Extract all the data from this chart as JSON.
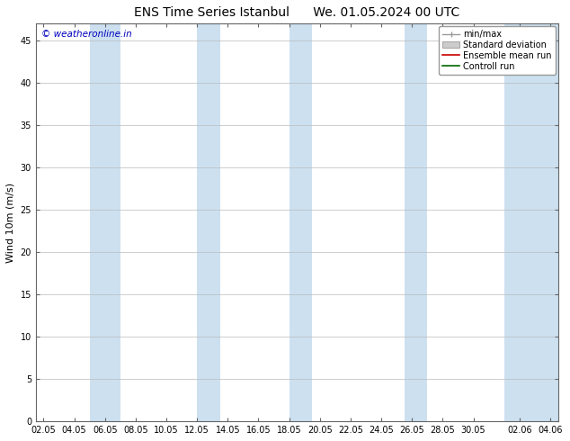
{
  "title_left": "ENS Time Series Istanbul",
  "title_right": "We. 01.05.2024 00 UTC",
  "ylabel": "Wind 10m (m/s)",
  "ylim": [
    0,
    47
  ],
  "yticks": [
    0,
    5,
    10,
    15,
    20,
    25,
    30,
    35,
    40,
    45
  ],
  "bg_color": "#ffffff",
  "plot_bg_color": "#ffffff",
  "watermark": "© weatheronline.in",
  "watermark_color": "#0000bb",
  "blue_band_color": "#cce0f0",
  "xtick_labels": [
    "02.05",
    "04.05",
    "06.05",
    "08.05",
    "10.05",
    "12.05",
    "14.05",
    "16.05",
    "18.05",
    "20.05",
    "22.05",
    "24.05",
    "26.05",
    "28.05",
    "30.05",
    "02.06",
    "04.06"
  ],
  "xtick_positions": [
    0,
    2,
    4,
    6,
    8,
    10,
    12,
    14,
    16,
    18,
    20,
    22,
    24,
    26,
    28,
    31,
    33
  ],
  "blue_bands": [
    [
      3.0,
      5.0
    ],
    [
      10.0,
      11.5
    ],
    [
      16.0,
      17.5
    ],
    [
      23.5,
      25.0
    ],
    [
      30.0,
      33.5
    ]
  ],
  "legend_labels": [
    "min/max",
    "Standard deviation",
    "Ensemble mean run",
    "Controll run"
  ],
  "title_fontsize": 10,
  "tick_fontsize": 7,
  "ylabel_fontsize": 8,
  "legend_fontsize": 7
}
